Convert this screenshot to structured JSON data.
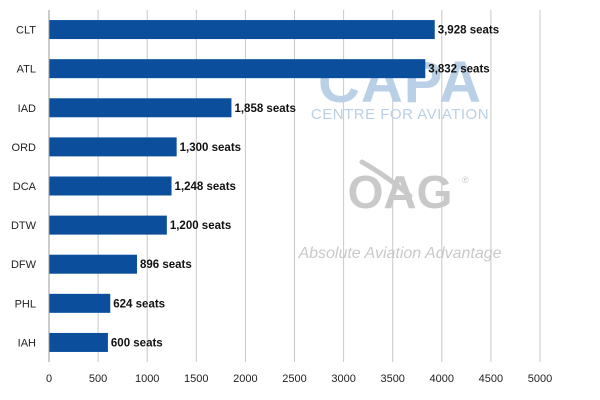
{
  "chart_data": {
    "type": "bar",
    "orientation": "horizontal",
    "title": "",
    "xlabel": "",
    "ylabel": "",
    "categories": [
      "CLT",
      "ATL",
      "IAD",
      "ORD",
      "DCA",
      "DTW",
      "DFW",
      "PHL",
      "IAH"
    ],
    "values": [
      3928,
      3832,
      1858,
      1300,
      1248,
      1200,
      896,
      624,
      600
    ],
    "data_labels": [
      "3,928 seats",
      "3,832 seats",
      "1,858 seats",
      "1,300 seats",
      "1,248 seats",
      "1,200 seats",
      "896 seats",
      "624 seats",
      "600 seats"
    ],
    "xlim": [
      0,
      5000
    ],
    "x_ticks": [
      "0",
      "500",
      "1000",
      "1500",
      "2000",
      "2500",
      "3000",
      "3500",
      "4000",
      "4500",
      "5000"
    ],
    "grid": "vertical",
    "legend": "none",
    "bar_color": "#0b4f9c",
    "grid_color": "#c8c8c8"
  },
  "watermarks": {
    "capa_logo_text": "CAPA",
    "capa_subtitle": "CENTRE FOR AVIATION",
    "oag_logo_text": "OAG",
    "oag_registered": "®",
    "oag_tagline": "Absolute Aviation Advantage",
    "capa_color": "#b9d0e6",
    "oag_color": "#c9c9c9"
  }
}
